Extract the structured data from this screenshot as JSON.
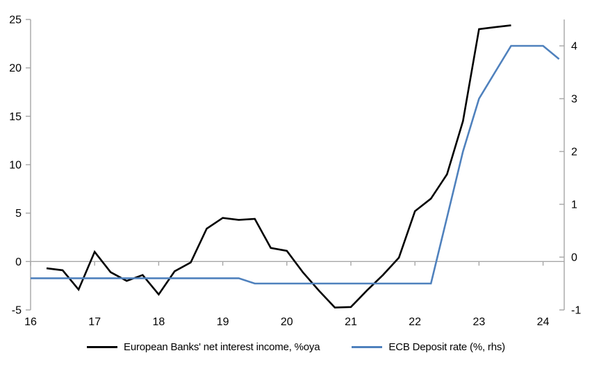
{
  "colors": {
    "background": "#ffffff",
    "axis": "#a6a6a6",
    "text": "#000000",
    "series1": "#000000",
    "series2": "#4f81bd"
  },
  "legend": {
    "items": [
      {
        "label": "European Banks' net interest income, %oya",
        "color": "#000000"
      },
      {
        "label": "ECB Deposit rate (%, rhs)",
        "color": "#4f81bd"
      }
    ]
  },
  "chart_data": {
    "type": "line",
    "title": "",
    "grid": "zero-line-only",
    "legend_position": "bottom-center",
    "x_axis": {
      "ticks": [
        16,
        17,
        18,
        19,
        20,
        21,
        22,
        23,
        24
      ],
      "range": [
        16,
        24.33
      ]
    },
    "left_axis": {
      "ticks": [
        -5,
        0,
        5,
        10,
        15,
        20,
        25
      ],
      "range": [
        -5,
        25
      ]
    },
    "right_axis": {
      "ticks": [
        -1,
        0,
        1,
        2,
        3,
        4
      ],
      "range": [
        -1,
        4.5
      ]
    },
    "series": [
      {
        "name": "European Banks' net interest income, %oya",
        "axis": "left",
        "color": "#000000",
        "x": [
          16.25,
          16.5,
          16.75,
          17,
          17.25,
          17.5,
          17.75,
          18,
          18.25,
          18.5,
          18.75,
          19,
          19.25,
          19.5,
          19.75,
          20,
          20.25,
          20.5,
          20.75,
          21,
          21.25,
          21.5,
          21.75,
          22,
          22.25,
          22.5,
          22.75,
          23,
          23.25,
          23.5
        ],
        "values": [
          -0.7,
          -0.9,
          -2.9,
          1.0,
          -1.1,
          -2.0,
          -1.4,
          -3.4,
          -1.0,
          -0.1,
          3.4,
          4.5,
          4.3,
          4.4,
          1.4,
          1.1,
          -1.1,
          -3.0,
          -4.75,
          -4.7,
          -3.0,
          -1.4,
          0.4,
          5.2,
          6.5,
          9.0,
          14.5,
          24.0,
          24.2,
          24.4
        ]
      },
      {
        "name": "ECB Deposit rate (%, rhs)",
        "axis": "right",
        "color": "#4f81bd",
        "x": [
          16,
          16.25,
          16.5,
          16.75,
          17,
          17.25,
          17.5,
          17.75,
          18,
          18.25,
          18.5,
          18.75,
          19,
          19.25,
          19.5,
          19.75,
          20,
          20.25,
          20.5,
          20.75,
          21,
          21.25,
          21.5,
          21.75,
          22,
          22.25,
          22.5,
          22.75,
          23,
          23.25,
          23.5,
          23.75,
          24,
          24.25
        ],
        "values": [
          -0.4,
          -0.4,
          -0.4,
          -0.4,
          -0.4,
          -0.4,
          -0.4,
          -0.4,
          -0.4,
          -0.4,
          -0.4,
          -0.4,
          -0.4,
          -0.4,
          -0.5,
          -0.5,
          -0.5,
          -0.5,
          -0.5,
          -0.5,
          -0.5,
          -0.5,
          -0.5,
          -0.5,
          -0.5,
          -0.5,
          0.75,
          2.0,
          3.0,
          3.5,
          4.0,
          4.0,
          4.0,
          3.75
        ]
      }
    ]
  }
}
